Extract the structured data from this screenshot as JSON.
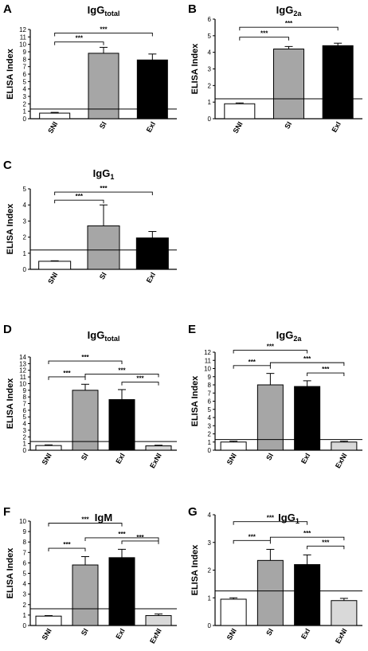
{
  "chart_data": [
    {
      "panel": "A",
      "type": "bar",
      "title_main": "IgG",
      "title_sub": "total",
      "ylabel": "ELISA Index",
      "ylim": [
        0,
        12
      ],
      "yticks": [
        0,
        1,
        2,
        3,
        4,
        5,
        6,
        7,
        8,
        9,
        10,
        11,
        12
      ],
      "categories": [
        "SNI",
        "SI",
        "ExI"
      ],
      "fills": [
        "#ffffff",
        "#a6a6a6",
        "#000000"
      ],
      "values": [
        0.75,
        8.8,
        7.9
      ],
      "errors": [
        0.1,
        0.8,
        0.8
      ],
      "cutoff": 1.3,
      "significance": [
        {
          "from": 0,
          "to": 1,
          "label": "***"
        },
        {
          "from": 0,
          "to": 2,
          "label": "***"
        }
      ]
    },
    {
      "panel": "B",
      "type": "bar",
      "title_main": "IgG",
      "title_sub": "2a",
      "ylabel": "ELISA Index",
      "ylim": [
        0,
        6
      ],
      "yticks": [
        0,
        1,
        2,
        3,
        4,
        5,
        6
      ],
      "categories": [
        "SNI",
        "SI",
        "ExI"
      ],
      "fills": [
        "#ffffff",
        "#a6a6a6",
        "#000000"
      ],
      "values": [
        0.9,
        4.2,
        4.4
      ],
      "errors": [
        0.05,
        0.15,
        0.15
      ],
      "cutoff": 1.2,
      "significance": [
        {
          "from": 0,
          "to": 1,
          "label": "***"
        },
        {
          "from": 0,
          "to": 2,
          "label": "***"
        }
      ]
    },
    {
      "panel": "C",
      "type": "bar",
      "title_main": "IgG",
      "title_sub": "1",
      "ylabel": "ELISA Index",
      "ylim": [
        0,
        5
      ],
      "yticks": [
        0,
        1,
        2,
        3,
        4,
        5
      ],
      "categories": [
        "SNI",
        "SI",
        "ExI"
      ],
      "fills": [
        "#ffffff",
        "#a6a6a6",
        "#000000"
      ],
      "values": [
        0.5,
        2.7,
        1.95
      ],
      "errors": [
        0.03,
        1.3,
        0.4
      ],
      "cutoff": 1.2,
      "significance": [
        {
          "from": 0,
          "to": 1,
          "label": "***"
        },
        {
          "from": 0,
          "to": 2,
          "label": "***"
        }
      ]
    },
    {
      "panel": "D",
      "type": "bar",
      "title_main": "IgG",
      "title_sub": "total",
      "ylabel": "ELISA Index",
      "ylim": [
        0,
        14
      ],
      "yticks": [
        0,
        1,
        2,
        3,
        4,
        5,
        6,
        7,
        8,
        9,
        10,
        11,
        12,
        13,
        14
      ],
      "categories": [
        "SNI",
        "SI",
        "ExI",
        "ExNI"
      ],
      "fills": [
        "#ffffff",
        "#a6a6a6",
        "#000000",
        "#d9d9d9"
      ],
      "values": [
        0.7,
        9.0,
        7.6,
        0.65
      ],
      "errors": [
        0.1,
        0.9,
        1.5,
        0.1
      ],
      "cutoff": 1.3,
      "significance": [
        {
          "from": 0,
          "to": 1,
          "label": "***"
        },
        {
          "from": 1,
          "to": 3,
          "label": "***"
        },
        {
          "from": 2,
          "to": 3,
          "label": "***"
        },
        {
          "from": 0,
          "to": 2,
          "label": "***"
        }
      ]
    },
    {
      "panel": "E",
      "type": "bar",
      "title_main": "IgG",
      "title_sub": "2a",
      "ylabel": "ELISA Index",
      "ylim": [
        0,
        12
      ],
      "yticks": [
        0,
        1,
        2,
        3,
        4,
        5,
        6,
        7,
        8,
        9,
        10,
        11,
        12
      ],
      "categories": [
        "SNI",
        "SI",
        "ExI",
        "ExNI"
      ],
      "fills": [
        "#ffffff",
        "#a6a6a6",
        "#000000",
        "#d9d9d9"
      ],
      "values": [
        1.0,
        8.0,
        7.8,
        1.0
      ],
      "errors": [
        0.1,
        1.4,
        0.7,
        0.1
      ],
      "cutoff": 1.3,
      "significance": [
        {
          "from": 0,
          "to": 1,
          "label": "***"
        },
        {
          "from": 1,
          "to": 3,
          "label": "***"
        },
        {
          "from": 2,
          "to": 3,
          "label": "***"
        },
        {
          "from": 0,
          "to": 2,
          "label": "***"
        }
      ]
    },
    {
      "panel": "F",
      "type": "bar",
      "title_main": "IgM",
      "title_sub": "",
      "ylabel": "ELISA Index",
      "ylim": [
        0,
        10
      ],
      "yticks": [
        0,
        1,
        2,
        3,
        4,
        5,
        6,
        7,
        8,
        9,
        10
      ],
      "categories": [
        "SNI",
        "SI",
        "ExI",
        "ExNI"
      ],
      "fills": [
        "#ffffff",
        "#a6a6a6",
        "#000000",
        "#d9d9d9"
      ],
      "values": [
        0.9,
        5.8,
        6.5,
        0.95
      ],
      "errors": [
        0.05,
        0.8,
        0.8,
        0.15
      ],
      "cutoff": 1.6,
      "significance": [
        {
          "from": 0,
          "to": 1,
          "label": "***"
        },
        {
          "from": 1,
          "to": 3,
          "label": "***"
        },
        {
          "from": 2,
          "to": 3,
          "label": "***"
        },
        {
          "from": 0,
          "to": 2,
          "label": "***"
        }
      ]
    },
    {
      "panel": "G",
      "type": "bar",
      "title_main": "IgG",
      "title_sub": "1",
      "ylabel": "ELISA Index",
      "ylim": [
        0,
        4
      ],
      "yticks": [
        0,
        1,
        2,
        3,
        4
      ],
      "categories": [
        "SNI",
        "SI",
        "ExI",
        "ExNI"
      ],
      "fills": [
        "#ffffff",
        "#a6a6a6",
        "#000000",
        "#d9d9d9"
      ],
      "values": [
        0.95,
        2.35,
        2.2,
        0.9
      ],
      "errors": [
        0.05,
        0.4,
        0.35,
        0.08
      ],
      "cutoff": 1.25,
      "significance": [
        {
          "from": 0,
          "to": 1,
          "label": "***"
        },
        {
          "from": 1,
          "to": 3,
          "label": "***"
        },
        {
          "from": 2,
          "to": 3,
          "label": "***"
        },
        {
          "from": 0,
          "to": 2,
          "label": "***"
        }
      ]
    }
  ]
}
